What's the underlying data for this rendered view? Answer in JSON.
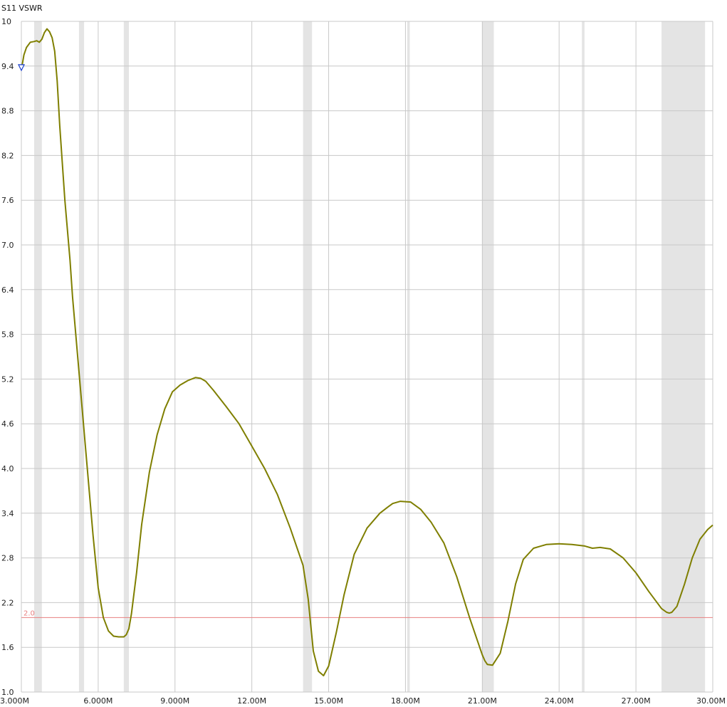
{
  "chart_data": {
    "type": "line",
    "title": "S11 VSWR",
    "xlim": [
      3.0,
      30.0
    ],
    "ylim": [
      1.0,
      10.0
    ],
    "x_ticks": [
      3,
      6,
      9,
      12,
      15,
      18,
      21,
      24,
      27,
      30
    ],
    "x_tick_labels": [
      "3.000M",
      "6.000M",
      "9.000M",
      "12.00M",
      "15.00M",
      "18.00M",
      "21.00M",
      "24.00M",
      "27.00M",
      "30.00M"
    ],
    "y_ticks": [
      1.0,
      1.6,
      2.2,
      2.8,
      3.4,
      4.0,
      4.6,
      5.2,
      5.8,
      6.4,
      7.0,
      7.6,
      8.2,
      8.8,
      9.4,
      10
    ],
    "y_tick_labels": [
      "1.0",
      "1.6",
      "2.2",
      "2.8",
      "3.4",
      "4.0",
      "4.6",
      "5.2",
      "5.8",
      "6.4",
      "7.0",
      "7.6",
      "8.2",
      "8.8",
      "9.4",
      "10"
    ],
    "grid": true,
    "bands": [
      [
        3.5,
        3.8
      ],
      [
        5.25,
        5.45
      ],
      [
        7.0,
        7.2
      ],
      [
        14.0,
        14.35
      ],
      [
        18.068,
        18.168
      ],
      [
        21.0,
        21.45
      ],
      [
        24.89,
        24.99
      ],
      [
        28.0,
        29.7
      ]
    ],
    "reference_line": {
      "value": 2.0,
      "label": "2.0",
      "color": "#e88080"
    },
    "series": [
      {
        "color": "#7f7f00",
        "x": [
          3.0,
          3.1,
          3.2,
          3.35,
          3.5,
          3.6,
          3.7,
          3.8,
          3.9,
          4.0,
          4.1,
          4.2,
          4.3,
          4.4,
          4.5,
          4.6,
          4.7,
          4.8,
          4.9,
          5.0,
          5.1,
          5.2,
          5.3,
          5.4,
          5.5,
          5.6,
          5.8,
          6.0,
          6.2,
          6.4,
          6.6,
          6.8,
          7.0,
          7.1,
          7.2,
          7.3,
          7.5,
          7.7,
          8.0,
          8.3,
          8.6,
          8.9,
          9.2,
          9.5,
          9.8,
          10.0,
          10.2,
          10.5,
          11.0,
          11.5,
          12.0,
          12.5,
          13.0,
          13.5,
          14.0,
          14.2,
          14.3,
          14.4,
          14.6,
          14.8,
          15.0,
          15.3,
          15.6,
          16.0,
          16.5,
          17.0,
          17.3,
          17.5,
          17.8,
          18.2,
          18.6,
          19.0,
          19.5,
          20.0,
          20.5,
          20.8,
          21.0,
          21.1,
          21.2,
          21.4,
          21.7,
          22.0,
          22.3,
          22.6,
          23.0,
          23.5,
          24.0,
          24.5,
          25.0,
          25.3,
          25.6,
          26.0,
          26.5,
          27.0,
          27.5,
          28.0,
          28.2,
          28.3,
          28.4,
          28.6,
          28.9,
          29.2,
          29.5,
          29.8,
          30.0
        ],
        "values": [
          9.35,
          9.55,
          9.65,
          9.72,
          9.73,
          9.74,
          9.72,
          9.76,
          9.85,
          9.9,
          9.86,
          9.78,
          9.6,
          9.2,
          8.6,
          8.1,
          7.6,
          7.2,
          6.8,
          6.3,
          5.9,
          5.5,
          5.1,
          4.7,
          4.3,
          3.9,
          3.1,
          2.4,
          2.0,
          1.82,
          1.75,
          1.74,
          1.74,
          1.77,
          1.85,
          2.05,
          2.6,
          3.25,
          3.95,
          4.45,
          4.8,
          5.03,
          5.12,
          5.18,
          5.22,
          5.21,
          5.17,
          5.05,
          4.83,
          4.6,
          4.3,
          4.0,
          3.65,
          3.2,
          2.7,
          2.25,
          1.9,
          1.55,
          1.28,
          1.22,
          1.35,
          1.8,
          2.3,
          2.85,
          3.2,
          3.4,
          3.48,
          3.53,
          3.56,
          3.55,
          3.45,
          3.28,
          3.0,
          2.55,
          2.0,
          1.7,
          1.5,
          1.42,
          1.37,
          1.36,
          1.52,
          1.95,
          2.45,
          2.78,
          2.93,
          2.98,
          2.99,
          2.98,
          2.96,
          2.93,
          2.94,
          2.92,
          2.8,
          2.6,
          2.35,
          2.12,
          2.07,
          2.06,
          2.07,
          2.15,
          2.45,
          2.8,
          3.05,
          3.18,
          3.24
        ]
      }
    ],
    "marker": {
      "x": 3.0,
      "y": 9.38,
      "color": "#1a3ecc"
    }
  }
}
